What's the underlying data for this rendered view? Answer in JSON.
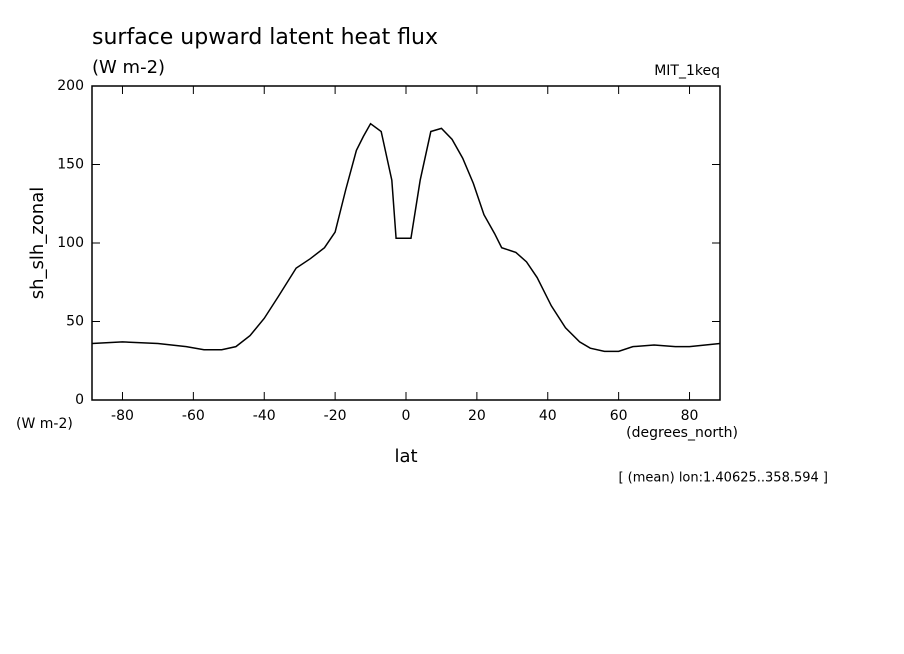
{
  "chart_data": {
    "type": "line",
    "title": "surface upward latent heat flux",
    "subtitle": "(W m-2)",
    "dataset_label": "MIT_1keq",
    "ylabel": "sh_slh_zonal",
    "y_units": "(W m-2)",
    "xlabel": "lat",
    "x_units": "(degrees_north)",
    "annotation": "[ (mean) lon:1.40625..358.594 ]",
    "x": [
      -88.6,
      -80,
      -70,
      -62,
      -57,
      -52,
      -48,
      -44,
      -40,
      -36,
      -31,
      -27,
      -23,
      -20,
      -17,
      -14,
      -12,
      -10,
      -7,
      -4,
      -2.8,
      1.4,
      4,
      7,
      10,
      13,
      16,
      19,
      22,
      25,
      27,
      31,
      34,
      37,
      41,
      45,
      49,
      52,
      56,
      60,
      64,
      70,
      76,
      80,
      88.6
    ],
    "series": [
      {
        "name": "sh_slh_zonal",
        "color": "#000000",
        "values": [
          36,
          37,
          36,
          34,
          32,
          32,
          34,
          41,
          52,
          66,
          84,
          90,
          97,
          107,
          134,
          159,
          168,
          176,
          171,
          140,
          103,
          103,
          140,
          171,
          173,
          166,
          154,
          138,
          118,
          106,
          97,
          94,
          88,
          78,
          60,
          46,
          37,
          33,
          31,
          31,
          34,
          35,
          34,
          34,
          36
        ]
      }
    ],
    "xlim": [
      -88.6,
      88.6
    ],
    "ylim": [
      0,
      200
    ],
    "xticks": [
      -80,
      -60,
      -40,
      -20,
      0,
      20,
      40,
      60,
      80
    ],
    "yticks": [
      0,
      50,
      100,
      150,
      200
    ],
    "grid": false
  }
}
